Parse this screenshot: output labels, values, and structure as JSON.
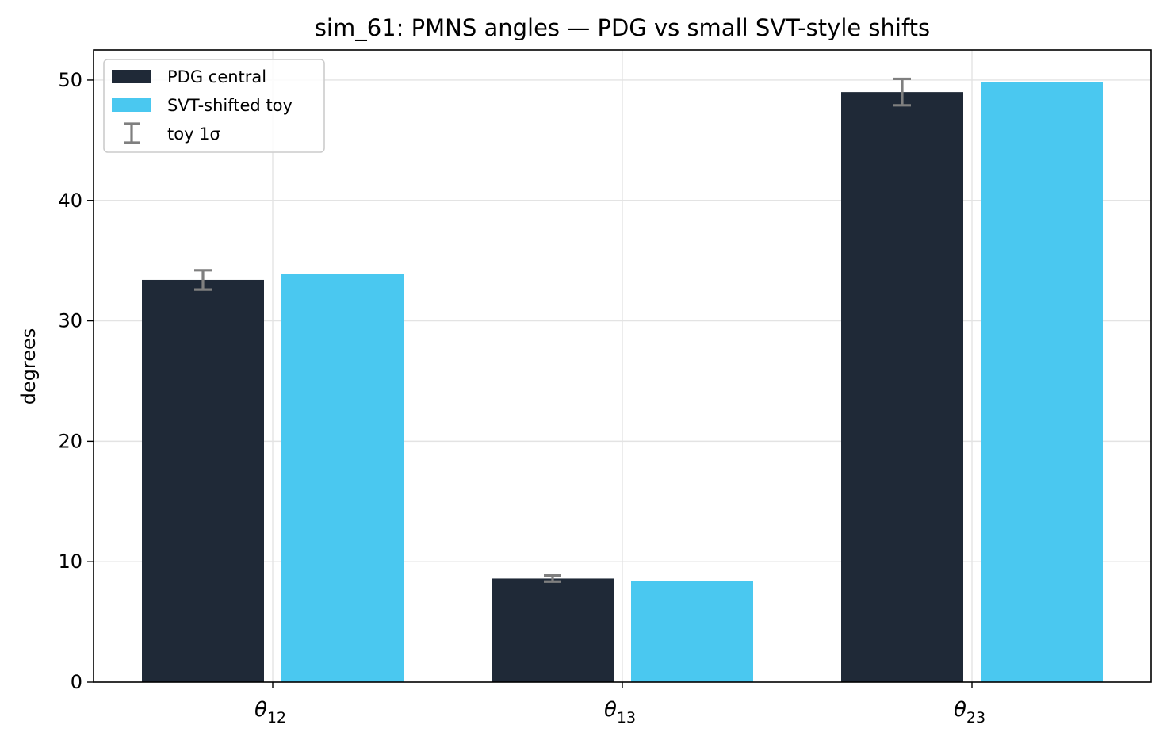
{
  "chart_data": {
    "type": "bar",
    "title": "sim_61: PMNS angles — PDG vs small SVT-style shifts",
    "xlabel": "",
    "ylabel": "degrees",
    "ylim": [
      0,
      52.5
    ],
    "yticks": [
      0,
      10,
      20,
      30,
      40,
      50
    ],
    "grid": true,
    "legend_position": "top-left",
    "categories": [
      {
        "symbol": "θ",
        "sub": "12"
      },
      {
        "symbol": "θ",
        "sub": "13"
      },
      {
        "symbol": "θ",
        "sub": "23"
      }
    ],
    "series": [
      {
        "name": "PDG central",
        "color": "#1f2937",
        "values": [
          33.4,
          8.6,
          49.0
        ]
      },
      {
        "name": "SVT-shifted toy",
        "color": "#4ac8f0",
        "values": [
          33.9,
          8.4,
          49.8
        ],
        "errors": [
          0.8,
          0.25,
          1.1
        ]
      }
    ],
    "errorbar": {
      "name": "toy 1σ",
      "color": "#7f7f7f"
    }
  }
}
